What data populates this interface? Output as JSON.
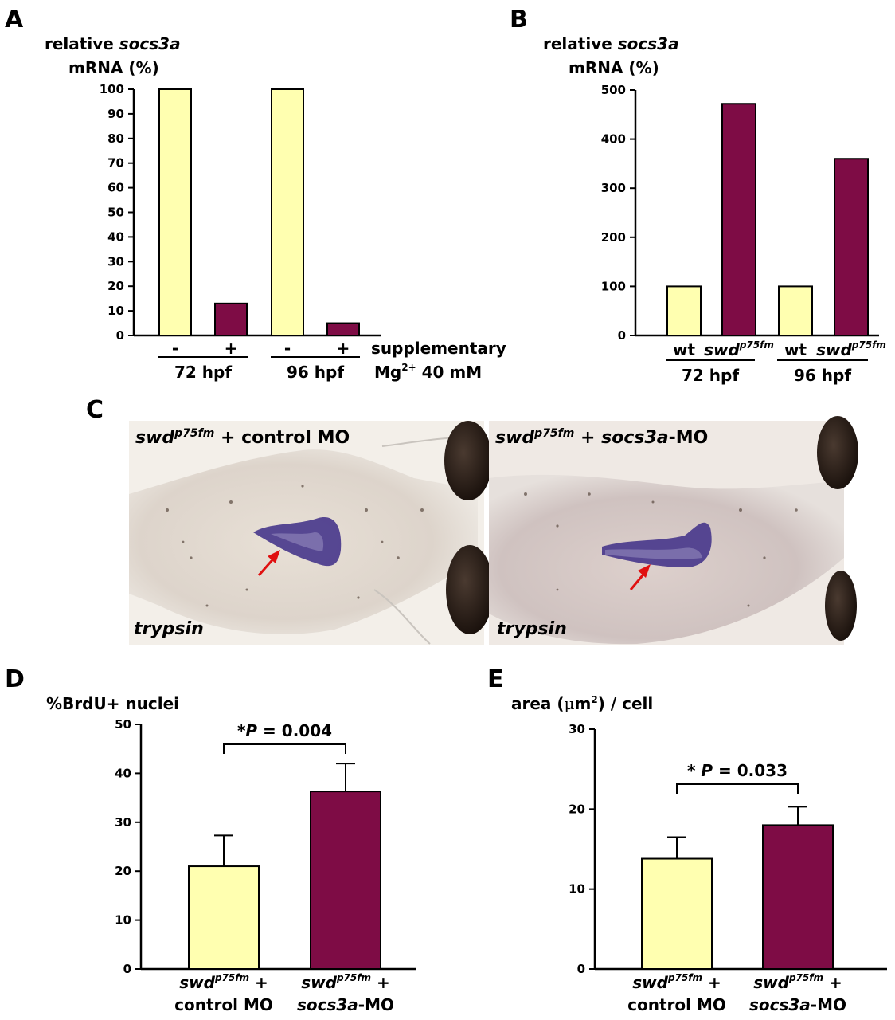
{
  "colors": {
    "control": "#ffffb0",
    "treated": "#7e0c45",
    "axis": "#000000"
  },
  "chart_data": [
    {
      "panel": "A",
      "type": "bar",
      "ylabel_parts": [
        "relative ",
        "socs3a",
        "mRNA (%)"
      ],
      "ylim": [
        0,
        100
      ],
      "yticks": [
        0,
        10,
        20,
        30,
        40,
        50,
        60,
        70,
        80,
        90,
        100
      ],
      "bars": [
        {
          "label": "-",
          "value": 100,
          "group": "control"
        },
        {
          "label": "+",
          "value": 13,
          "group": "treated"
        },
        {
          "label": "-",
          "value": 100,
          "group": "control"
        },
        {
          "label": "+",
          "value": 5,
          "group": "treated"
        }
      ],
      "groups": [
        "72 hpf",
        "96 hpf"
      ],
      "side_label": [
        "supplementary",
        "Mg",
        "2+",
        " 40 mM"
      ]
    },
    {
      "panel": "B",
      "type": "bar",
      "ylabel_parts": [
        "relative ",
        "socs3a",
        "mRNA (%)"
      ],
      "ylim": [
        0,
        500
      ],
      "yticks": [
        0,
        100,
        200,
        300,
        400,
        500
      ],
      "bars": [
        {
          "label": "wt",
          "value": 100,
          "group": "control"
        },
        {
          "label": "swd",
          "sup": "p75fm",
          "value": 472,
          "group": "treated"
        },
        {
          "label": "wt",
          "value": 100,
          "group": "control"
        },
        {
          "label": "swd",
          "sup": "p75fm",
          "value": 360,
          "group": "treated"
        }
      ],
      "groups": [
        "72 hpf",
        "96 hpf"
      ]
    },
    {
      "panel": "D",
      "type": "bar",
      "ylabel": "%BrdU+ nuclei",
      "ylim": [
        0,
        50
      ],
      "yticks": [
        0,
        10,
        20,
        30,
        40,
        50
      ],
      "bars": [
        {
          "line1": [
            "swd",
            "p75fm",
            " +"
          ],
          "line2": [
            "control MO"
          ],
          "value": 21,
          "error": 6.3,
          "group": "control"
        },
        {
          "line1": [
            "swd",
            "p75fm",
            " +"
          ],
          "line2": [
            "socs3a",
            "-MO"
          ],
          "value": 36.3,
          "error": 5.7,
          "group": "treated"
        }
      ],
      "significance": {
        "star": "*",
        "p": "P",
        "text": " = 0.004"
      }
    },
    {
      "panel": "E",
      "type": "bar",
      "ylabel_parts": [
        "area (",
        "μ",
        "m",
        "2",
        ") / cell"
      ],
      "ylim": [
        0,
        30
      ],
      "yticks": [
        0,
        10,
        20,
        30
      ],
      "bars": [
        {
          "line1": [
            "swd",
            "p75fm",
            " +"
          ],
          "line2": [
            "control MO"
          ],
          "value": 13.8,
          "error": 2.7,
          "group": "control"
        },
        {
          "line1": [
            "swd",
            "p75fm",
            " +"
          ],
          "line2": [
            "socs3a",
            "-MO"
          ],
          "value": 18,
          "error": 2.3,
          "group": "treated"
        }
      ],
      "significance": {
        "star": "* ",
        "p": "P",
        "text": " = 0.033"
      }
    }
  ],
  "panel_c": {
    "letter": "C",
    "left": {
      "title": [
        "swd",
        "p75fm",
        " + control MO"
      ],
      "stain": "trypsin"
    },
    "right": {
      "title": [
        "swd",
        "p75fm",
        " + ",
        "socs3a",
        "-MO"
      ],
      "stain": "trypsin"
    }
  }
}
